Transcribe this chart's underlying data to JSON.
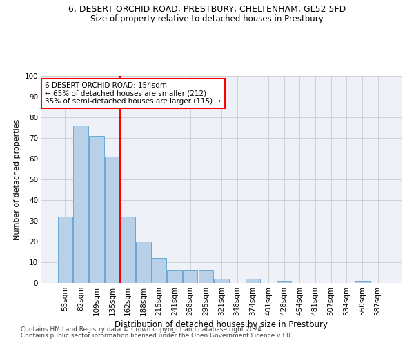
{
  "title1": "6, DESERT ORCHID ROAD, PRESTBURY, CHELTENHAM, GL52 5FD",
  "title2": "Size of property relative to detached houses in Prestbury",
  "xlabel": "Distribution of detached houses by size in Prestbury",
  "ylabel": "Number of detached properties",
  "footer1": "Contains HM Land Registry data © Crown copyright and database right 2024.",
  "footer2": "Contains public sector information licensed under the Open Government Licence v3.0.",
  "bar_labels": [
    "55sqm",
    "82sqm",
    "109sqm",
    "135sqm",
    "162sqm",
    "188sqm",
    "215sqm",
    "241sqm",
    "268sqm",
    "295sqm",
    "321sqm",
    "348sqm",
    "374sqm",
    "401sqm",
    "428sqm",
    "454sqm",
    "481sqm",
    "507sqm",
    "534sqm",
    "560sqm",
    "587sqm"
  ],
  "bar_values": [
    32,
    76,
    71,
    61,
    32,
    20,
    12,
    6,
    6,
    6,
    2,
    0,
    2,
    0,
    1,
    0,
    0,
    0,
    0,
    1,
    0
  ],
  "bar_color": "#b8d0e8",
  "bar_edge_color": "#6aaad4",
  "vline_color": "red",
  "vline_pos": 3.5,
  "annotation_text": "6 DESERT ORCHID ROAD: 154sqm\n← 65% of detached houses are smaller (212)\n35% of semi-detached houses are larger (115) →",
  "annotation_box_color": "white",
  "annotation_box_edgecolor": "red",
  "ylim": [
    0,
    100
  ],
  "yticks": [
    0,
    10,
    20,
    30,
    40,
    50,
    60,
    70,
    80,
    90,
    100
  ],
  "grid_color": "#cccccc",
  "bg_color": "#eef2f8",
  "title1_fontsize": 9,
  "title2_fontsize": 8.5,
  "xlabel_fontsize": 8.5,
  "ylabel_fontsize": 8,
  "tick_fontsize": 7.5,
  "annotation_fontsize": 7.5,
  "footer_fontsize": 6.5
}
